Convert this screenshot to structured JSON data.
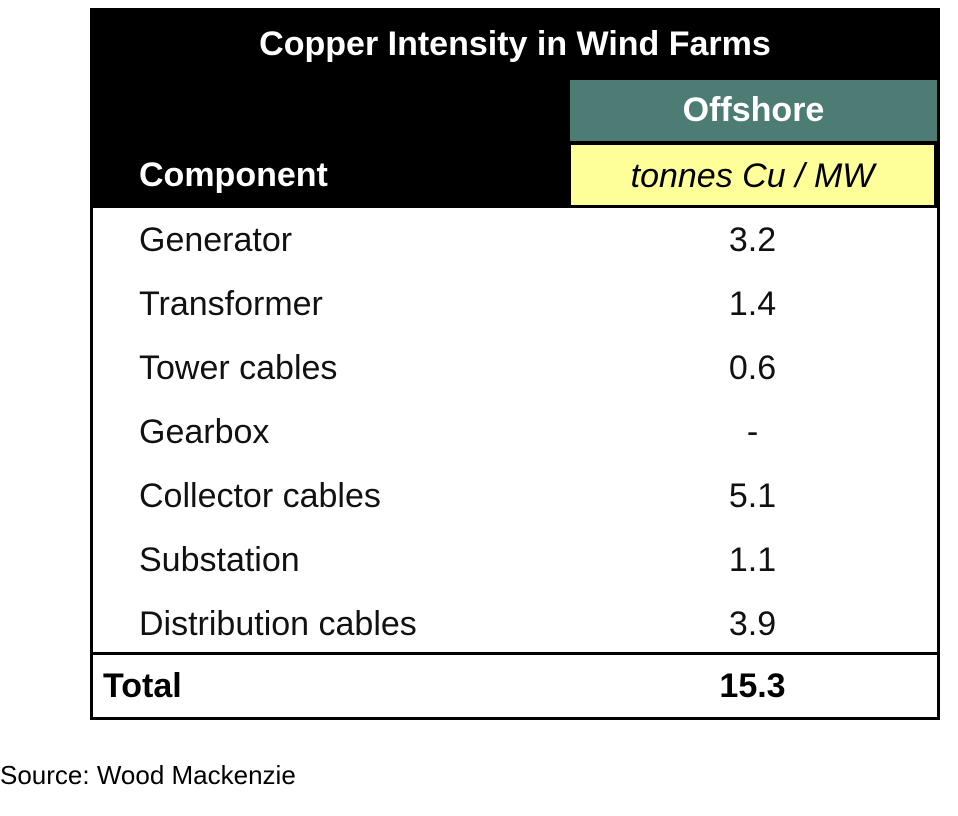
{
  "colors": {
    "header_bg": "#000000",
    "offshore_bg": "#4d7c74",
    "unit_bg": "#ffff99"
  },
  "chart_data": {
    "type": "table",
    "title": "Copper Intensity in Wind Farms",
    "group_header": "Offshore",
    "columns": [
      "Component",
      "tonnes Cu / MW"
    ],
    "rows": [
      {
        "component": "Generator",
        "value": "3.2"
      },
      {
        "component": "Transformer",
        "value": "1.4"
      },
      {
        "component": "Tower cables",
        "value": "0.6"
      },
      {
        "component": "Gearbox",
        "value": "-"
      },
      {
        "component": "Collector cables",
        "value": "5.1"
      },
      {
        "component": "Substation",
        "value": "1.1"
      },
      {
        "component": "Distribution cables",
        "value": "3.9"
      }
    ],
    "total": {
      "label": "Total",
      "value": "15.3"
    }
  },
  "source": "Source: Wood Mackenzie"
}
